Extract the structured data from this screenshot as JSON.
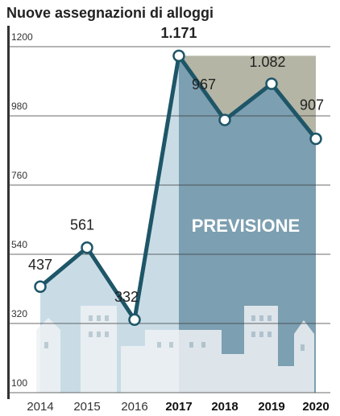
{
  "chart_data": {
    "type": "line",
    "title": "Nuove assegnazioni di alloggi",
    "categories": [
      "2014",
      "2015",
      "2016",
      "2017",
      "2018",
      "2019",
      "2020"
    ],
    "values": [
      437,
      561,
      332,
      1171,
      967,
      1082,
      907
    ],
    "value_labels": [
      "437",
      "561",
      "332",
      "1.171",
      "967",
      "1.082",
      "907"
    ],
    "color": "#1e5668",
    "ylim": [
      100,
      1200
    ],
    "yticks": [
      100,
      320,
      540,
      760,
      980,
      1200
    ],
    "grid": true,
    "annotation": "PREVISIONE"
  }
}
